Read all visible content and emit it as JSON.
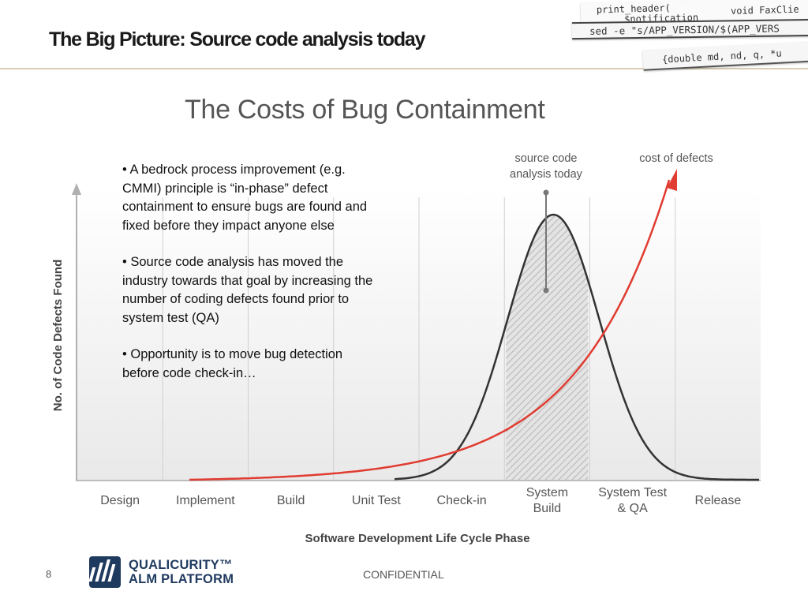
{
  "slide": {
    "title": "The Big Picture:  Source code analysis today",
    "page_number": "8",
    "footer_text": "CONFIDENTIAL"
  },
  "code_strips": [
    {
      "line1": "print_header(",
      "line1b": "void FaxClie",
      "line1c": "$notification"
    },
    {
      "text": "sed -e \"s/APP_VERSION/$(APP_VERS"
    },
    {
      "text": "{double md, nd, q, *u"
    }
  ],
  "bullets": [
    "• A bedrock process improvement (e.g. CMMI) principle is “in-phase” defect containment to ensure bugs are found and fixed before they impact anyone else",
    "• Source code analysis has moved the industry towards that goal by increasing the number of coding defects found prior to system test (QA)",
    "• Opportunity is to move bug detection before code check-in…"
  ],
  "logo": {
    "line1": "QUALICURITY™",
    "line2": "ALM PLATFORM",
    "brand_color": "#1f3a5f"
  },
  "chart_data": {
    "type": "line",
    "title": "The Costs of Bug Containment",
    "xlabel": "Software Development Life Cycle Phase",
    "ylabel": "No. of Code Defects Found",
    "categories": [
      "Design",
      "Implement",
      "Build",
      "Unit Test",
      "Check-in",
      "System\nBuild",
      "System Test\n& QA",
      "Release"
    ],
    "highlight_category": "System\nBuild",
    "series": [
      {
        "name": "",
        "shape": "bell",
        "peak_category": "System\nBuild",
        "color": "#333333"
      },
      {
        "name": "cost of defects",
        "shape": "exponential",
        "color": "#e03c31"
      }
    ],
    "annotations": [
      {
        "text": "source code\nanalysis today",
        "category": "System\nBuild"
      },
      {
        "text": "cost of defects",
        "series": "cost of defects"
      }
    ],
    "grid": true
  }
}
